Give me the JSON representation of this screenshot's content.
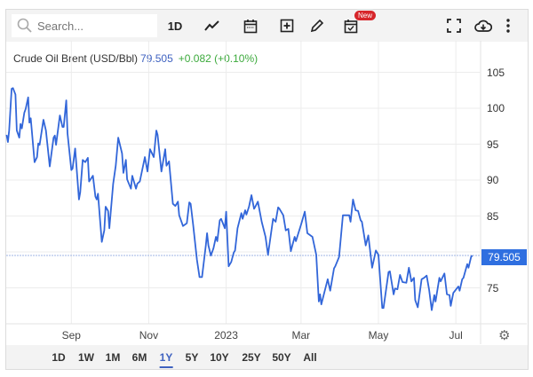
{
  "toolbar": {
    "search_placeholder": "Search...",
    "interval_label": "1D",
    "new_badge": "New",
    "icons": [
      "search-icon",
      "line-chart-icon",
      "calendar-icon",
      "add-box-icon",
      "pencil-icon",
      "calendar-check-icon",
      "fullscreen-icon",
      "cloud-download-icon",
      "more-vertical-icon"
    ]
  },
  "legend": {
    "name": "Crude Oil Brent (USD/Bbl)",
    "last": "79.505",
    "change": "+0.082 (+0.10%)"
  },
  "price_tag": "79.505",
  "colors": {
    "line": "#3266d9",
    "price_tag": "#2f6fe0",
    "positive": "#3caa3c",
    "badge": "#d7262b"
  },
  "ranges": [
    "1D",
    "1W",
    "1M",
    "6M",
    "1Y",
    "5Y",
    "10Y",
    "25Y",
    "50Y",
    "All"
  ],
  "active_range": "1Y",
  "chart_data": {
    "type": "line",
    "title": "",
    "xlabel": "",
    "ylabel": "",
    "ylim": [
      70,
      107
    ],
    "y_axis_side": "right",
    "yticks": [
      "75",
      "80",
      "85",
      "90",
      "95",
      "100",
      "105"
    ],
    "ytick_labels_shown": [
      "75",
      "85",
      "90",
      "95",
      "100",
      "105"
    ],
    "xticks": [
      {
        "date": "2022-09-01",
        "label": "Sep"
      },
      {
        "date": "2022-11-01",
        "label": "Nov"
      },
      {
        "date": "2023-01-01",
        "label": "2023"
      },
      {
        "date": "2023-03-01",
        "label": "Mar"
      },
      {
        "date": "2023-05-01",
        "label": "May"
      },
      {
        "date": "2023-07-01",
        "label": "Jul"
      }
    ],
    "grid": true,
    "current_value_line": 79.505,
    "series": [
      {
        "points": [
          [
            "2022-07-12",
            96.3
          ],
          [
            "2022-07-13",
            95.3
          ],
          [
            "2022-07-14",
            96.9
          ],
          [
            "2022-07-16",
            102.7
          ],
          [
            "2022-07-17",
            102.8
          ],
          [
            "2022-07-19",
            101.9
          ],
          [
            "2022-07-20",
            96.9
          ],
          [
            "2022-07-22",
            95.9
          ],
          [
            "2022-07-23",
            97.8
          ],
          [
            "2022-07-24",
            97.2
          ],
          [
            "2022-07-26",
            99.4
          ],
          [
            "2022-07-27",
            99.9
          ],
          [
            "2022-07-29",
            101.5
          ],
          [
            "2022-07-30",
            98.0
          ],
          [
            "2022-07-31",
            98.6
          ],
          [
            "2022-08-03",
            92.5
          ],
          [
            "2022-08-05",
            93.2
          ],
          [
            "2022-08-06",
            95.1
          ],
          [
            "2022-08-07",
            94.9
          ],
          [
            "2022-08-10",
            98.4
          ],
          [
            "2022-08-12",
            96.9
          ],
          [
            "2022-08-15",
            91.9
          ],
          [
            "2022-08-18",
            95.9
          ],
          [
            "2022-08-19",
            96.2
          ],
          [
            "2022-08-20",
            94.9
          ],
          [
            "2022-08-23",
            99.0
          ],
          [
            "2022-08-25",
            97.4
          ],
          [
            "2022-08-26",
            97.4
          ],
          [
            "2022-08-28",
            101.1
          ],
          [
            "2022-08-29",
            96.5
          ],
          [
            "2022-09-01",
            91.4
          ],
          [
            "2022-09-02",
            91.6
          ],
          [
            "2022-09-04",
            94.4
          ],
          [
            "2022-09-07",
            87.3
          ],
          [
            "2022-09-08",
            88.3
          ],
          [
            "2022-09-10",
            92.8
          ],
          [
            "2022-09-12",
            92.5
          ],
          [
            "2022-09-14",
            93.1
          ],
          [
            "2022-09-15",
            89.8
          ],
          [
            "2022-09-18",
            90.6
          ],
          [
            "2022-09-20",
            87.7
          ],
          [
            "2022-09-21",
            87.3
          ],
          [
            "2022-09-22",
            88.1
          ],
          [
            "2022-09-25",
            81.4
          ],
          [
            "2022-09-27",
            83.0
          ],
          [
            "2022-09-28",
            86.3
          ],
          [
            "2022-09-30",
            85.7
          ],
          [
            "2022-10-01",
            83.3
          ],
          [
            "2022-10-04",
            89.5
          ],
          [
            "2022-10-06",
            92.0
          ],
          [
            "2022-10-08",
            95.9
          ],
          [
            "2022-10-11",
            93.7
          ],
          [
            "2022-10-12",
            91.0
          ],
          [
            "2022-10-14",
            92.8
          ],
          [
            "2022-10-15",
            90.1
          ],
          [
            "2022-10-18",
            88.8
          ],
          [
            "2022-10-19",
            90.6
          ],
          [
            "2022-10-22",
            88.8
          ],
          [
            "2022-10-23",
            89.5
          ],
          [
            "2022-10-25",
            89.8
          ],
          [
            "2022-10-29",
            93.2
          ],
          [
            "2022-10-31",
            91.2
          ],
          [
            "2022-11-02",
            94.3
          ],
          [
            "2022-11-05",
            93.2
          ],
          [
            "2022-11-07",
            96.9
          ],
          [
            "2022-11-08",
            96.3
          ],
          [
            "2022-11-11",
            91.2
          ],
          [
            "2022-11-14",
            94.3
          ],
          [
            "2022-11-15",
            92.0
          ],
          [
            "2022-11-17",
            92.6
          ],
          [
            "2022-11-20",
            86.7
          ],
          [
            "2022-11-22",
            86.4
          ],
          [
            "2022-11-24",
            87.0
          ],
          [
            "2022-11-25",
            85.1
          ],
          [
            "2022-11-28",
            83.6
          ],
          [
            "2022-12-01",
            84.0
          ],
          [
            "2022-12-03",
            86.9
          ],
          [
            "2022-12-04",
            86.7
          ],
          [
            "2022-12-06",
            83.8
          ],
          [
            "2022-12-09",
            78.9
          ],
          [
            "2022-12-11",
            76.5
          ],
          [
            "2022-12-13",
            76.5
          ],
          [
            "2022-12-16",
            80.9
          ],
          [
            "2022-12-17",
            82.6
          ],
          [
            "2022-12-18",
            80.9
          ],
          [
            "2022-12-20",
            79.5
          ],
          [
            "2022-12-22",
            80.5
          ],
          [
            "2022-12-24",
            82.1
          ],
          [
            "2022-12-25",
            81.5
          ],
          [
            "2022-12-27",
            84.4
          ],
          [
            "2022-12-28",
            84.6
          ],
          [
            "2022-12-31",
            83.3
          ],
          [
            "2023-01-01",
            85.6
          ],
          [
            "2023-01-03",
            78.0
          ],
          [
            "2023-01-05",
            78.6
          ],
          [
            "2023-01-07",
            79.9
          ],
          [
            "2023-01-08",
            80.2
          ],
          [
            "2023-01-10",
            83.3
          ],
          [
            "2023-01-13",
            85.4
          ],
          [
            "2023-01-14",
            84.6
          ],
          [
            "2023-01-16",
            85.8
          ],
          [
            "2023-01-17",
            85.2
          ],
          [
            "2023-01-19",
            86.3
          ],
          [
            "2023-01-21",
            87.9
          ],
          [
            "2023-01-23",
            86.0
          ],
          [
            "2023-01-24",
            86.3
          ],
          [
            "2023-01-26",
            87.0
          ],
          [
            "2023-01-29",
            84.2
          ],
          [
            "2023-02-01",
            82.1
          ],
          [
            "2023-02-03",
            79.6
          ],
          [
            "2023-02-07",
            84.6
          ],
          [
            "2023-02-09",
            84.2
          ],
          [
            "2023-02-11",
            86.2
          ],
          [
            "2023-02-12",
            86.0
          ],
          [
            "2023-02-15",
            85.1
          ],
          [
            "2023-02-17",
            83.0
          ],
          [
            "2023-02-19",
            83.2
          ],
          [
            "2023-02-21",
            80.1
          ],
          [
            "2023-02-24",
            82.1
          ],
          [
            "2023-02-25",
            81.5
          ],
          [
            "2023-03-01",
            83.8
          ],
          [
            "2023-03-04",
            85.6
          ],
          [
            "2023-03-06",
            82.6
          ],
          [
            "2023-03-10",
            82.1
          ],
          [
            "2023-03-13",
            79.6
          ],
          [
            "2023-03-15",
            73.1
          ],
          [
            "2023-03-16",
            74.1
          ],
          [
            "2023-03-17",
            72.7
          ],
          [
            "2023-03-22",
            76.2
          ],
          [
            "2023-03-24",
            74.6
          ],
          [
            "2023-03-27",
            77.7
          ],
          [
            "2023-03-28",
            78.0
          ],
          [
            "2023-03-31",
            79.3
          ],
          [
            "2023-04-03",
            85.1
          ],
          [
            "2023-04-08",
            85.1
          ],
          [
            "2023-04-09",
            84.2
          ],
          [
            "2023-04-11",
            87.3
          ],
          [
            "2023-04-13",
            85.8
          ],
          [
            "2023-04-15",
            85.7
          ],
          [
            "2023-04-17",
            84.4
          ],
          [
            "2023-04-18",
            84.2
          ],
          [
            "2023-04-21",
            80.9
          ],
          [
            "2023-04-23",
            82.3
          ],
          [
            "2023-04-26",
            77.8
          ],
          [
            "2023-04-29",
            80.2
          ],
          [
            "2023-05-01",
            79.6
          ],
          [
            "2023-05-04",
            72.2
          ],
          [
            "2023-05-05",
            72.2
          ],
          [
            "2023-05-09",
            77.2
          ],
          [
            "2023-05-10",
            77.3
          ],
          [
            "2023-05-13",
            74.1
          ],
          [
            "2023-05-14",
            74.9
          ],
          [
            "2023-05-16",
            74.8
          ],
          [
            "2023-05-18",
            76.8
          ],
          [
            "2023-05-20",
            75.8
          ],
          [
            "2023-05-23",
            75.7
          ],
          [
            "2023-05-25",
            77.8
          ],
          [
            "2023-05-27",
            75.9
          ],
          [
            "2023-05-29",
            76.4
          ],
          [
            "2023-05-30",
            73.3
          ],
          [
            "2023-06-01",
            72.3
          ],
          [
            "2023-06-04",
            76.2
          ],
          [
            "2023-06-06",
            76.4
          ],
          [
            "2023-06-08",
            76.7
          ],
          [
            "2023-06-10",
            74.7
          ],
          [
            "2023-06-12",
            71.9
          ],
          [
            "2023-06-14",
            74.0
          ],
          [
            "2023-06-15",
            73.1
          ],
          [
            "2023-06-18",
            76.4
          ],
          [
            "2023-06-19",
            75.9
          ],
          [
            "2023-06-22",
            77.0
          ],
          [
            "2023-06-24",
            74.1
          ],
          [
            "2023-06-26",
            74.0
          ],
          [
            "2023-06-27",
            72.5
          ],
          [
            "2023-06-29",
            74.3
          ],
          [
            "2023-07-03",
            75.2
          ],
          [
            "2023-07-04",
            74.6
          ],
          [
            "2023-07-06",
            76.2
          ],
          [
            "2023-07-07",
            76.4
          ],
          [
            "2023-07-10",
            78.3
          ],
          [
            "2023-07-11",
            77.8
          ],
          [
            "2023-07-13",
            79.3
          ],
          [
            "2023-07-14",
            79.505
          ]
        ]
      }
    ]
  }
}
